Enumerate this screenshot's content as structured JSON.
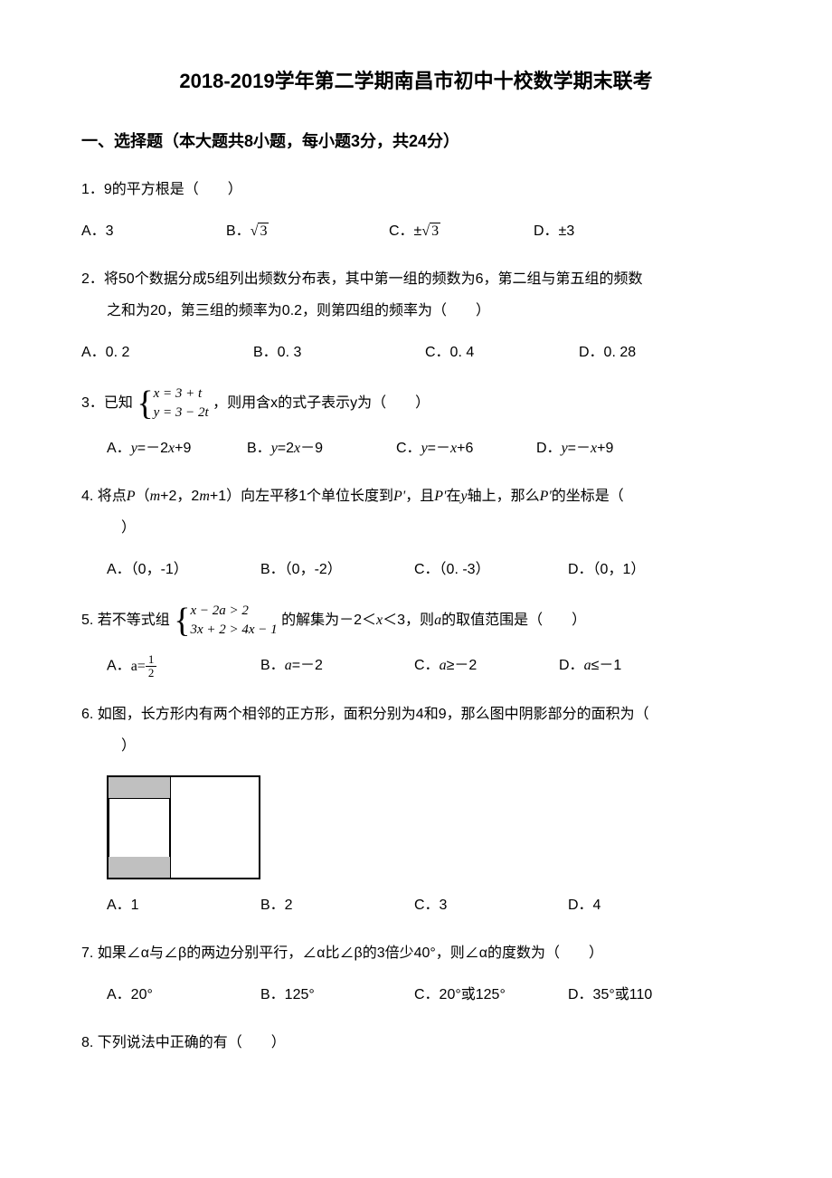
{
  "title": "2018-2019学年第二学期南昌市初中十校数学期末联考",
  "section1": {
    "header": "一、选择题（本大题共8小题，每小题3分，共24分）"
  },
  "q1": {
    "text": "1．9的平方根是（　　）",
    "a": "A．3",
    "b_prefix": "B．",
    "b_val": "3",
    "c_prefix": "C．±",
    "c_val": "3",
    "d": "D．±3"
  },
  "q2": {
    "line1": "2．将50个数据分成5组列出频数分布表，其中第一组的频数为6，第二组与第五组的频数",
    "line2": "之和为20，第三组的频率为0.2，则第四组的频率为（　　）",
    "a": "A．0. 2",
    "b": "B．0. 3",
    "c": "C．0. 4",
    "d": "D．0. 28"
  },
  "q3": {
    "prefix": "3．已知",
    "eq1": "x = 3 + t",
    "eq2": "y = 3 − 2t",
    "suffix": "，则用含x的式子表示y为（　　）",
    "a": "A．y=－2x+9",
    "b": "B．y=2x－9",
    "c": "C．y=－x+6",
    "d": "D．y=－x+9"
  },
  "q4": {
    "text": "4. 将点P（m+2，2m+1）向左平移1个单位长度到P'，且P'在y轴上，那么P'的坐标是（　　）",
    "a": "A．（0，-1）",
    "b": "B．（0，-2）",
    "c": "C．（0. -3）",
    "d": "D．（0，1）"
  },
  "q5": {
    "prefix": "5. 若不等式组",
    "eq1": "x − 2a > 2",
    "eq2": "3x + 2 > 4x − 1",
    "suffix": "的解集为－2＜x＜3，则a的取值范围是（　　）",
    "a_prefix": "A．",
    "a_eq": "a=",
    "a_num": "1",
    "a_den": "2",
    "b": "B．a=－2",
    "c": "C．a≥－2",
    "d": "D．a≤－1"
  },
  "q6": {
    "text": "6. 如图，长方形内有两个相邻的正方形，面积分别为4和9，那么图中阴影部分的面积为（　　）",
    "a": "A．1",
    "b": "B．2",
    "c": "C．3",
    "d": "D．4",
    "figure": {
      "outer_width": 170,
      "outer_height": 115,
      "inner_square_size": 68,
      "shaded_height": 23,
      "shaded_color": "#c0c0c0",
      "border_color": "#000000"
    }
  },
  "q7": {
    "text": "7. 如果∠α与∠β的两边分别平行，∠α比∠β的3倍少40°，则∠α的度数为（　　）",
    "a": "A．20°",
    "b": "B．125°",
    "c": "C．20°或125°",
    "d": "D．35°或110"
  },
  "q8": {
    "text": "8. 下列说法中正确的有（　　）"
  }
}
